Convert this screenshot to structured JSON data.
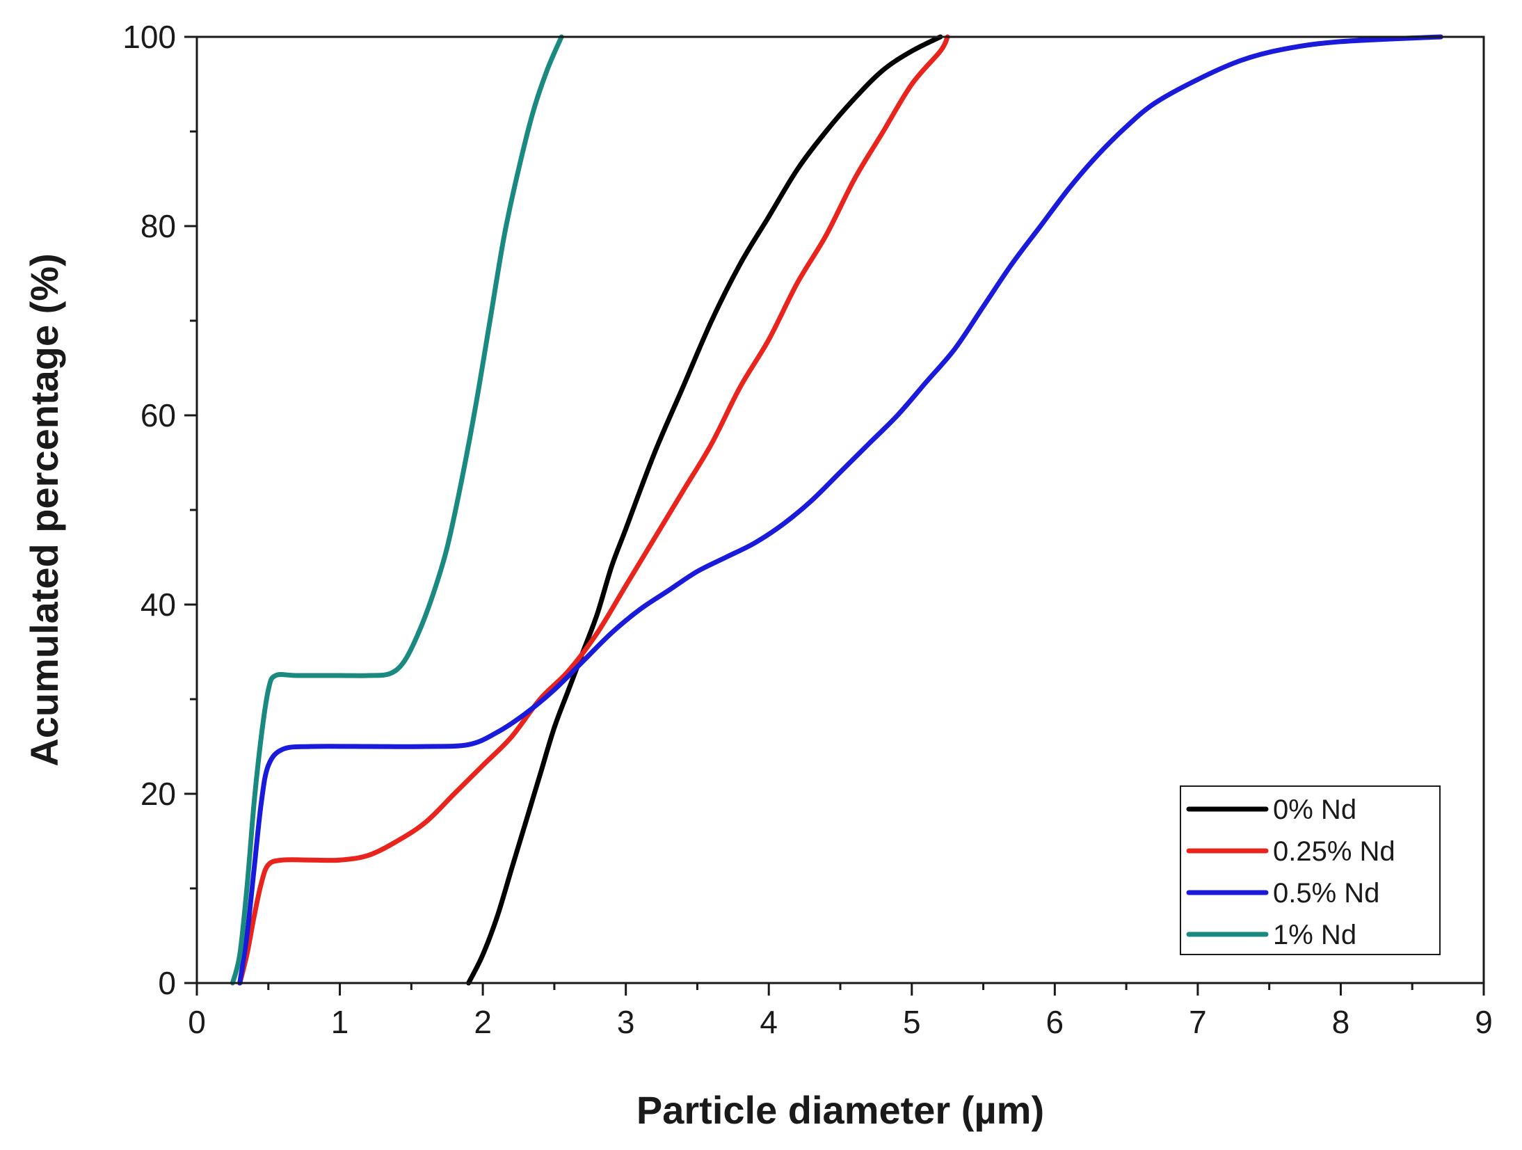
{
  "chart_data": {
    "type": "line",
    "title": "",
    "xlabel": "Particle diameter (µm)",
    "ylabel": "Acumulated percentage (%)",
    "xlim": [
      0,
      9
    ],
    "ylim": [
      0,
      100
    ],
    "x_ticks": [
      0,
      1,
      2,
      3,
      4,
      5,
      6,
      7,
      8,
      9
    ],
    "y_ticks": [
      0,
      20,
      40,
      60,
      80,
      100
    ],
    "x_tick_labels": [
      "0",
      "1",
      "2",
      "3",
      "4",
      "5",
      "6",
      "7",
      "8",
      "9"
    ],
    "y_tick_labels": [
      "0",
      "20",
      "40",
      "60",
      "80",
      "100"
    ],
    "grid": false,
    "legend_position": "bottom-right",
    "series": [
      {
        "name": "0% Nd",
        "color": "#000000",
        "points": [
          [
            1.9,
            0
          ],
          [
            2.0,
            3
          ],
          [
            2.1,
            7
          ],
          [
            2.2,
            12
          ],
          [
            2.3,
            17
          ],
          [
            2.4,
            22
          ],
          [
            2.5,
            27
          ],
          [
            2.6,
            31
          ],
          [
            2.7,
            35
          ],
          [
            2.8,
            39
          ],
          [
            2.9,
            44
          ],
          [
            3.0,
            48
          ],
          [
            3.2,
            56
          ],
          [
            3.4,
            63
          ],
          [
            3.6,
            70
          ],
          [
            3.8,
            76
          ],
          [
            4.0,
            81
          ],
          [
            4.2,
            86
          ],
          [
            4.4,
            90
          ],
          [
            4.6,
            93.5
          ],
          [
            4.8,
            96.5
          ],
          [
            5.0,
            98.5
          ],
          [
            5.2,
            100
          ]
        ]
      },
      {
        "name": "0.25% Nd",
        "color": "#e8241c",
        "points": [
          [
            0.3,
            0
          ],
          [
            0.35,
            3
          ],
          [
            0.4,
            7
          ],
          [
            0.45,
            10.5
          ],
          [
            0.5,
            12.5
          ],
          [
            0.6,
            13
          ],
          [
            0.8,
            13
          ],
          [
            1.0,
            13
          ],
          [
            1.2,
            13.5
          ],
          [
            1.4,
            15
          ],
          [
            1.6,
            17
          ],
          [
            1.8,
            20
          ],
          [
            2.0,
            23
          ],
          [
            2.2,
            26
          ],
          [
            2.4,
            30
          ],
          [
            2.6,
            33
          ],
          [
            2.8,
            37
          ],
          [
            3.0,
            42
          ],
          [
            3.2,
            47
          ],
          [
            3.4,
            52
          ],
          [
            3.6,
            57
          ],
          [
            3.8,
            63
          ],
          [
            4.0,
            68
          ],
          [
            4.2,
            74
          ],
          [
            4.4,
            79
          ],
          [
            4.6,
            85
          ],
          [
            4.8,
            90
          ],
          [
            5.0,
            95
          ],
          [
            5.2,
            98.5
          ],
          [
            5.25,
            100
          ]
        ]
      },
      {
        "name": "0.5% Nd",
        "color": "#1a1adb",
        "points": [
          [
            0.3,
            0
          ],
          [
            0.35,
            5
          ],
          [
            0.4,
            12
          ],
          [
            0.45,
            19
          ],
          [
            0.5,
            23
          ],
          [
            0.6,
            24.7
          ],
          [
            0.8,
            25
          ],
          [
            1.2,
            25
          ],
          [
            1.6,
            25
          ],
          [
            1.9,
            25.2
          ],
          [
            2.1,
            26.5
          ],
          [
            2.3,
            28.5
          ],
          [
            2.5,
            31
          ],
          [
            2.7,
            34
          ],
          [
            2.9,
            37
          ],
          [
            3.1,
            39.5
          ],
          [
            3.3,
            41.5
          ],
          [
            3.5,
            43.5
          ],
          [
            3.7,
            45
          ],
          [
            3.9,
            46.5
          ],
          [
            4.1,
            48.5
          ],
          [
            4.3,
            51
          ],
          [
            4.5,
            54
          ],
          [
            4.7,
            57
          ],
          [
            4.9,
            60
          ],
          [
            5.1,
            63.5
          ],
          [
            5.3,
            67
          ],
          [
            5.5,
            71.5
          ],
          [
            5.7,
            76
          ],
          [
            5.9,
            80
          ],
          [
            6.1,
            84
          ],
          [
            6.3,
            87.5
          ],
          [
            6.5,
            90.5
          ],
          [
            6.7,
            93
          ],
          [
            7.0,
            95.5
          ],
          [
            7.3,
            97.5
          ],
          [
            7.6,
            98.7
          ],
          [
            8.0,
            99.5
          ],
          [
            8.7,
            100
          ]
        ]
      },
      {
        "name": "1% Nd",
        "color": "#1a8a80",
        "points": [
          [
            0.25,
            0
          ],
          [
            0.3,
            3
          ],
          [
            0.35,
            10
          ],
          [
            0.4,
            19
          ],
          [
            0.45,
            26
          ],
          [
            0.5,
            31
          ],
          [
            0.55,
            32.5
          ],
          [
            0.7,
            32.5
          ],
          [
            1.0,
            32.5
          ],
          [
            1.2,
            32.5
          ],
          [
            1.35,
            32.7
          ],
          [
            1.45,
            34
          ],
          [
            1.55,
            37
          ],
          [
            1.65,
            41
          ],
          [
            1.75,
            46
          ],
          [
            1.85,
            53
          ],
          [
            1.95,
            61
          ],
          [
            2.05,
            70
          ],
          [
            2.15,
            79
          ],
          [
            2.25,
            86
          ],
          [
            2.35,
            92
          ],
          [
            2.45,
            96.5
          ],
          [
            2.55,
            100
          ]
        ]
      }
    ]
  }
}
